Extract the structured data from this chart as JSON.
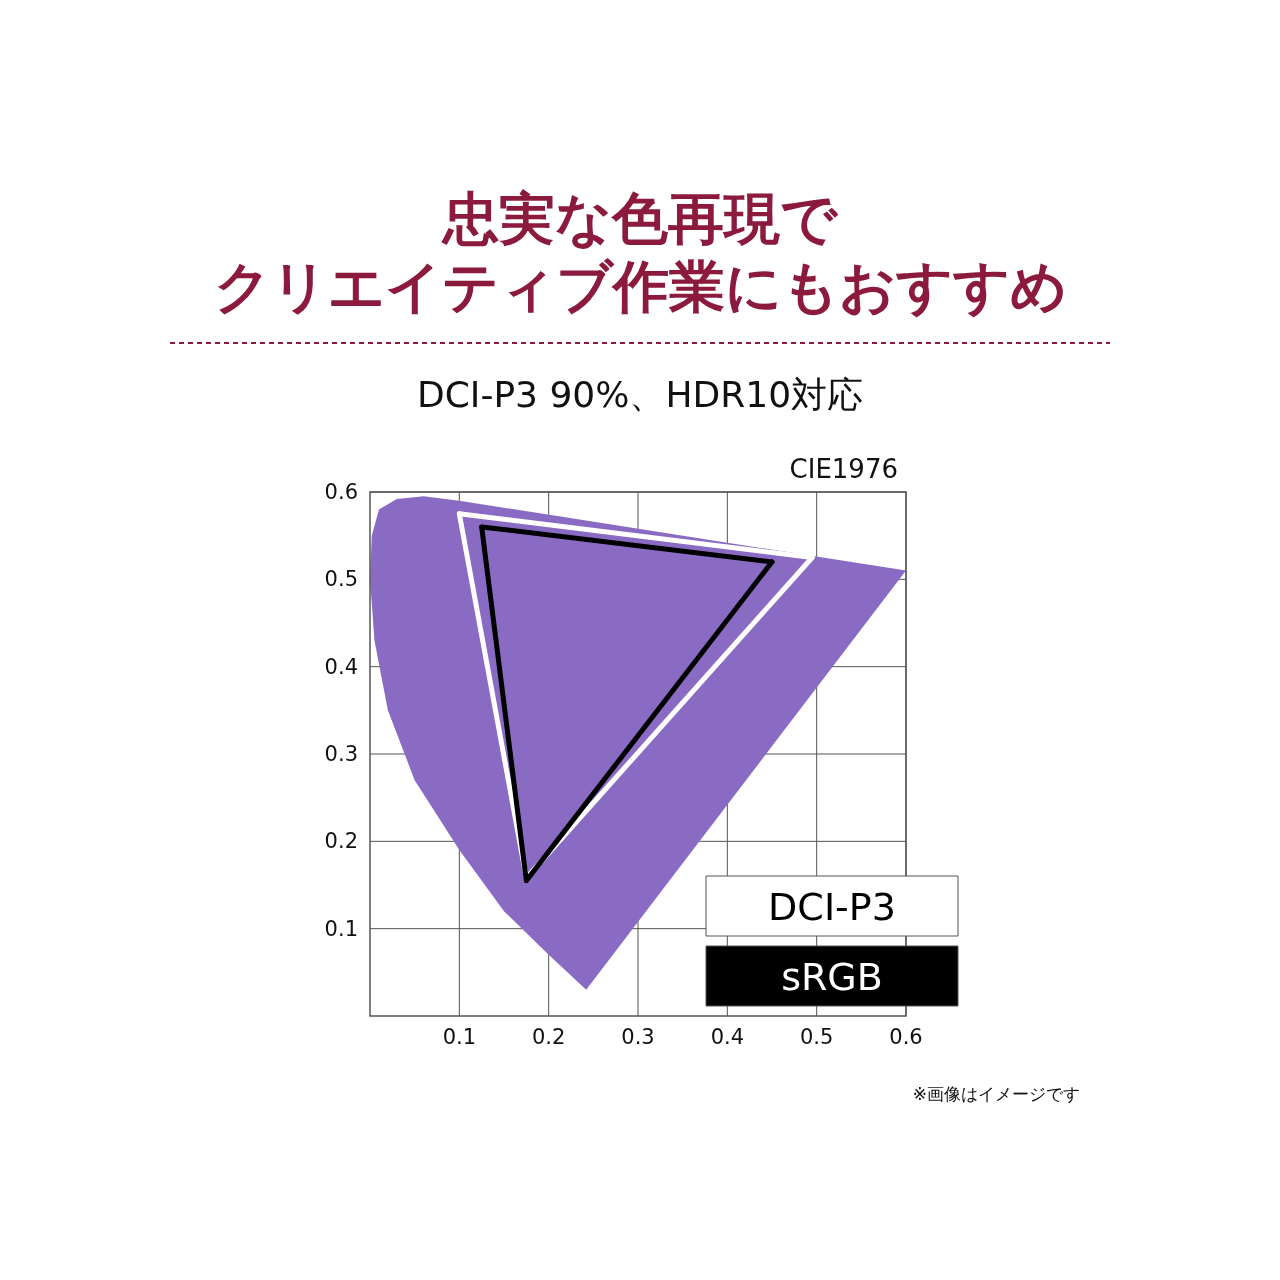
{
  "chart_data": {
    "type": "line",
    "title": "忠実な色再現で",
    "subtitle": "クリエイティブ作業にもおすすめ",
    "annotations": [
      "DCI-P3 90%、HDR10対応",
      "CIE1976",
      "※画像はイメージです"
    ],
    "xlim": [
      0,
      0.6
    ],
    "ylim": [
      0,
      0.6
    ],
    "xticks": [
      0.1,
      0.2,
      0.3,
      0.4,
      0.5,
      0.6
    ],
    "yticks": [
      0.1,
      0.2,
      0.3,
      0.4,
      0.5,
      0.6
    ],
    "grid": true,
    "legend": "bottom right",
    "marker": "none",
    "series": [
      {
        "type": "area",
        "color": "#8a6bc4",
        "x": [
          0.242,
          0.2,
          0.15,
          0.1,
          0.05,
          0.02,
          0.005,
          0.0,
          0.002,
          0.01,
          0.03,
          0.06,
          0.1,
          0.6
        ],
        "values": [
          0.03,
          0.07,
          0.12,
          0.19,
          0.27,
          0.35,
          0.43,
          0.5,
          0.55,
          0.58,
          0.592,
          0.595,
          0.59,
          0.51
        ]
      },
      {
        "name": "DCI-P3",
        "color": "#ffffff",
        "x": [
          0.1,
          0.495
        ],
        "values": [
          0.575,
          0.525
        ]
      },
      {
        "color": "#ffffff",
        "x": [
          0.1,
          0.175,
          0.495
        ],
        "values": [
          0.575,
          0.158,
          0.525
        ]
      },
      {
        "name": "sRGB",
        "color": "#000000",
        "x": [
          0.125,
          0.45
        ],
        "values": [
          0.56,
          0.52
        ]
      },
      {
        "color": "#000000",
        "x": [
          0.125,
          0.175,
          0.45
        ],
        "values": [
          0.56,
          0.155,
          0.52
        ]
      }
    ]
  }
}
